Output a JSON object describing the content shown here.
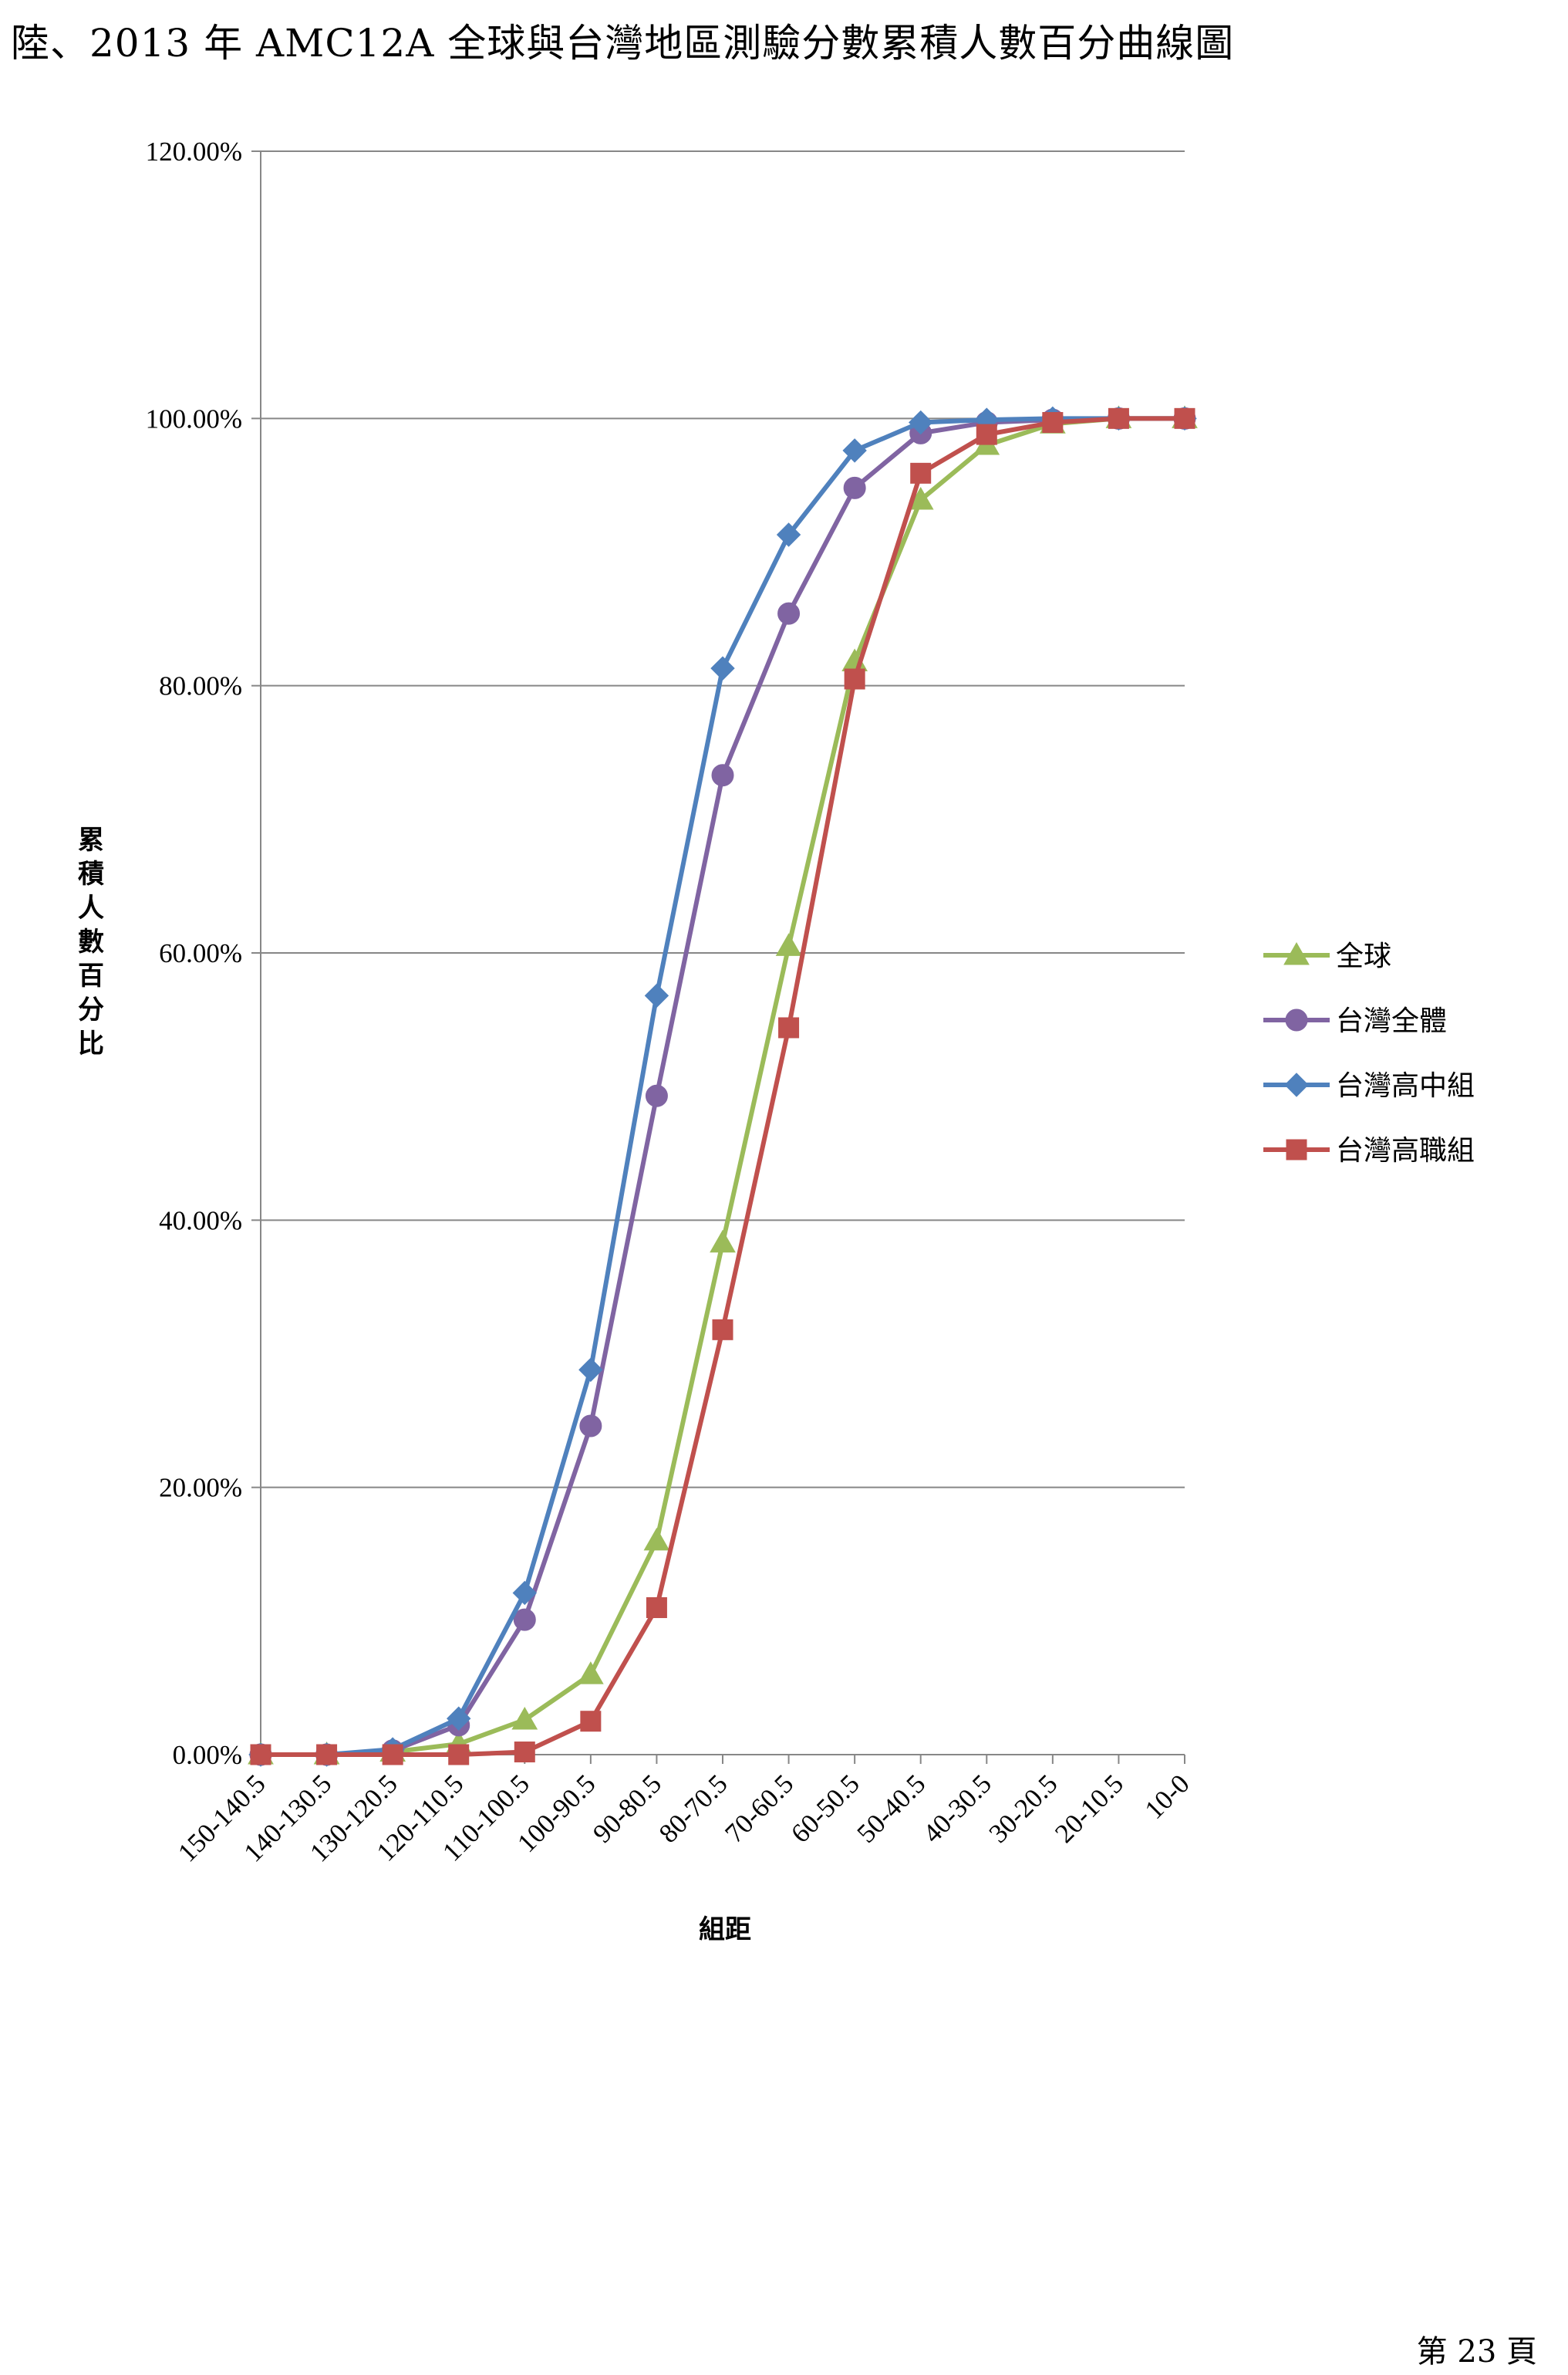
{
  "page": {
    "title": "陸、2013 年 AMC12A 全球與台灣地區測驗分數累積人數百分曲線圖",
    "page_number": "第 23 頁"
  },
  "chart_data": {
    "type": "line",
    "title": "",
    "xlabel": "組距",
    "ylabel": "累積人數百分比",
    "categories": [
      "150-140.5",
      "140-130.5",
      "130-120.5",
      "120-110.5",
      "110-100.5",
      "100-90.5",
      "90-80.5",
      "80-70.5",
      "70-60.5",
      "60-50.5",
      "50-40.5",
      "40-30.5",
      "30-20.5",
      "20-10.5",
      "10-0"
    ],
    "ylim": [
      0,
      120
    ],
    "yticks": [
      "0.00%",
      "20.00%",
      "40.00%",
      "60.00%",
      "80.00%",
      "100.00%",
      "120.00%"
    ],
    "grid": "horizontal",
    "legend_position": "right",
    "series": [
      {
        "name": "全球",
        "color": "#9BBB59",
        "marker": "triangle",
        "values": [
          0.0,
          0.0,
          0.2,
          0.8,
          2.6,
          6.0,
          16.0,
          38.3,
          60.5,
          81.8,
          93.9,
          98.0,
          99.6,
          100.0,
          100.0
        ]
      },
      {
        "name": "台灣全體",
        "color": "#8064A2",
        "marker": "circle",
        "values": [
          0.0,
          0.0,
          0.3,
          2.2,
          10.1,
          24.6,
          49.3,
          73.3,
          85.4,
          94.8,
          98.9,
          99.7,
          99.9,
          100.0,
          100.0
        ]
      },
      {
        "name": "台灣高中組",
        "color": "#4F81BD",
        "marker": "diamond",
        "values": [
          0.0,
          0.0,
          0.4,
          2.7,
          12.1,
          28.8,
          56.8,
          81.3,
          91.3,
          97.6,
          99.7,
          99.9,
          100.0,
          100.0,
          100.0
        ]
      },
      {
        "name": "台灣高職組",
        "color": "#C0504D",
        "marker": "square",
        "values": [
          0.0,
          0.0,
          0.0,
          0.0,
          0.2,
          2.5,
          11.0,
          31.8,
          54.4,
          80.5,
          95.9,
          98.8,
          99.7,
          100.0,
          100.0
        ]
      }
    ]
  }
}
